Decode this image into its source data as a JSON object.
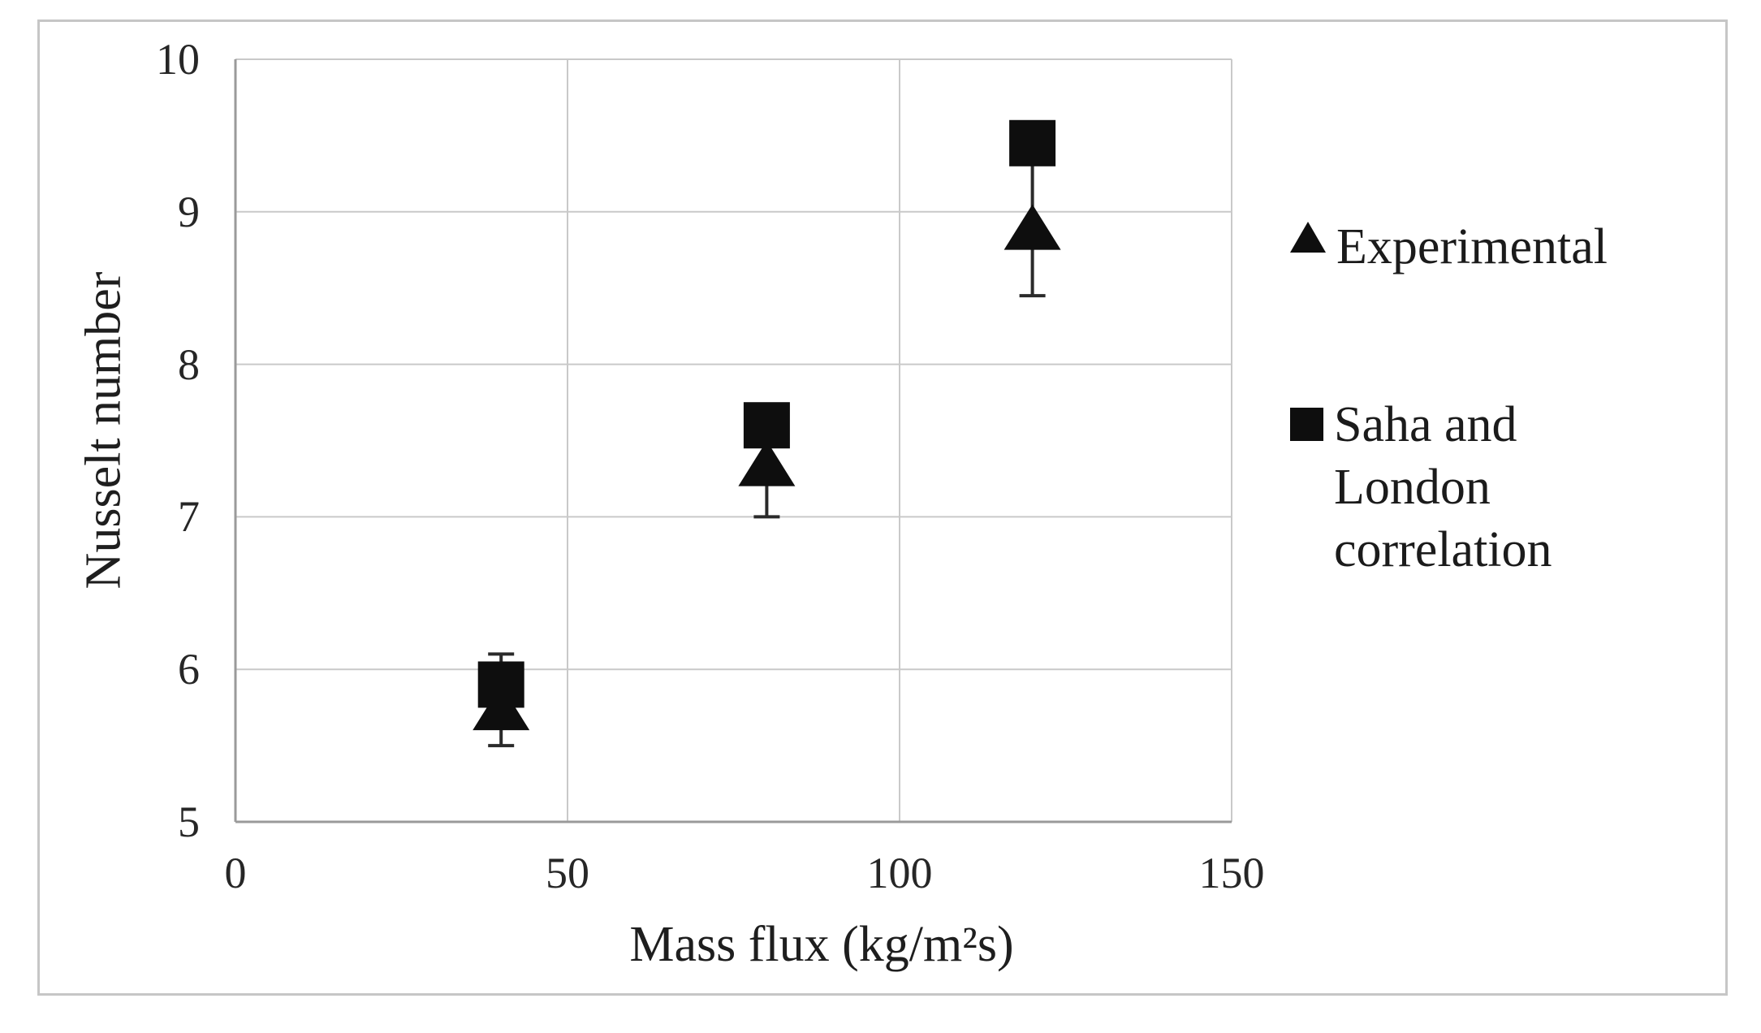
{
  "chart_data": {
    "type": "scatter",
    "title": "",
    "xlabel": "Mass flux (kg/m²s)",
    "ylabel": "Nusselt number",
    "xlim": [
      0,
      150
    ],
    "ylim": [
      5,
      10
    ],
    "xticks": [
      0,
      50,
      100,
      150
    ],
    "yticks": [
      5,
      6,
      7,
      8,
      9,
      10
    ],
    "grid": true,
    "legend_position": "right-outside",
    "colors": {
      "marker": "#0e0e0e",
      "gridline": "#c9c9c9",
      "axis": "#9a9a9a",
      "error_bar": "#2a2a2a",
      "text": "#1e1e1e"
    },
    "series": [
      {
        "name": "Experimental",
        "marker": "triangle",
        "color": "#0e0e0e",
        "x": [
          40,
          80,
          120
        ],
        "y": [
          5.75,
          7.35,
          8.9
        ],
        "error_low": [
          5.5,
          7.0,
          8.45
        ],
        "error_high": [
          6.1,
          7.7,
          9.35
        ]
      },
      {
        "name": "Saha and London correlation",
        "marker": "square",
        "color": "#0e0e0e",
        "x": [
          40,
          80,
          120
        ],
        "y": [
          5.9,
          7.6,
          9.45
        ]
      }
    ]
  }
}
